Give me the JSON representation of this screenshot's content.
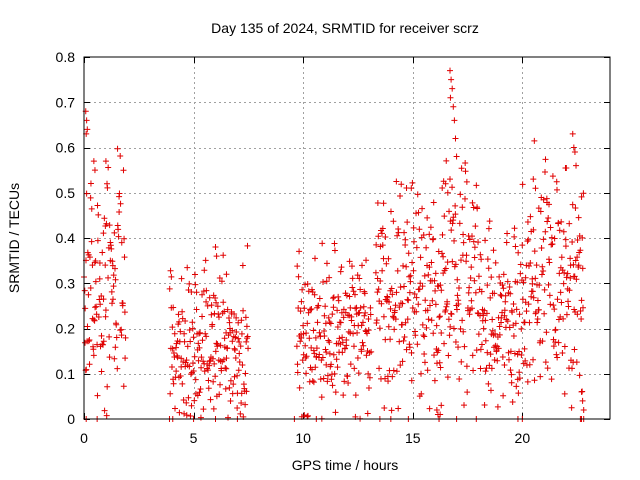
{
  "chart_data": {
    "type": "scatter",
    "title": "Day 135 of 2024, SRMTID for receiver scrz",
    "xlabel": "GPS time / hours",
    "ylabel": "SRMTID / TECUs",
    "xlim": [
      0,
      24
    ],
    "ylim": [
      0,
      0.8
    ],
    "x_ticks": [
      0,
      5,
      10,
      15,
      20
    ],
    "x_tick_labels": [
      "0",
      "5",
      "10",
      "15",
      "20"
    ],
    "y_ticks": [
      0,
      0.1,
      0.2,
      0.3,
      0.4,
      0.5,
      0.6,
      0.7,
      0.8
    ],
    "y_tick_labels": [
      "0",
      "0.1",
      "0.2",
      "0.3",
      "0.4",
      "0.5",
      "0.6",
      "0.7",
      "0.8"
    ],
    "grid": true,
    "marker": "+",
    "marker_color": "#e00000",
    "series": [
      {
        "name": "SRMTID",
        "segments": [
          {
            "start": 0.0,
            "end": 1.9,
            "base": 0.27,
            "spread": 0.12
          },
          {
            "start": 3.9,
            "end": 7.5,
            "base": 0.16,
            "spread": 0.09
          },
          {
            "start": 9.7,
            "end": 13.1,
            "base": 0.18,
            "spread": 0.08
          },
          {
            "start": 13.3,
            "end": 16.3,
            "base": 0.27,
            "spread": 0.11
          },
          {
            "start": 16.3,
            "end": 18.0,
            "base": 0.3,
            "spread": 0.12
          },
          {
            "start": 18.0,
            "end": 20.0,
            "base": 0.24,
            "spread": 0.1
          },
          {
            "start": 20.0,
            "end": 22.8,
            "base": 0.3,
            "spread": 0.12
          }
        ],
        "extra_points": [
          [
            0.08,
            0.68
          ],
          [
            0.12,
            0.66
          ],
          [
            0.15,
            0.64
          ],
          [
            0.1,
            0.63
          ],
          [
            0.45,
            0.57
          ],
          [
            0.5,
            0.55
          ],
          [
            1.0,
            0.57
          ],
          [
            1.05,
            0.52
          ],
          [
            16.7,
            0.77
          ],
          [
            16.75,
            0.75
          ],
          [
            16.8,
            0.73
          ],
          [
            16.72,
            0.71
          ],
          [
            16.85,
            0.69
          ],
          [
            16.9,
            0.66
          ],
          [
            16.95,
            0.62
          ],
          [
            17.0,
            0.58
          ],
          [
            16.5,
            0.52
          ],
          [
            16.6,
            0.5
          ],
          [
            22.3,
            0.63
          ],
          [
            22.35,
            0.6
          ],
          [
            22.4,
            0.59
          ],
          [
            22.45,
            0.56
          ],
          [
            20.5,
            0.53
          ],
          [
            20.6,
            0.51
          ],
          [
            6.0,
            0.38
          ],
          [
            6.05,
            0.36
          ],
          [
            6.5,
            0.32
          ],
          [
            16.1,
            0.02
          ],
          [
            16.15,
            0.01
          ],
          [
            16.2,
            0.0
          ],
          [
            16.25,
            0.01
          ],
          [
            16.3,
            0.03
          ],
          [
            22.7,
            0.06
          ],
          [
            22.75,
            0.04
          ],
          [
            22.8,
            0.02
          ],
          [
            22.65,
            0.0
          ]
        ],
        "zero_points": [
          0.1,
          0.6,
          3.9,
          4.05,
          5.0,
          6.0,
          7.0,
          9.6,
          10.6,
          13.5,
          14.0,
          14.8,
          16.2,
          17.0,
          17.9,
          19.8,
          20.0,
          22.7,
          22.8
        ]
      }
    ]
  }
}
